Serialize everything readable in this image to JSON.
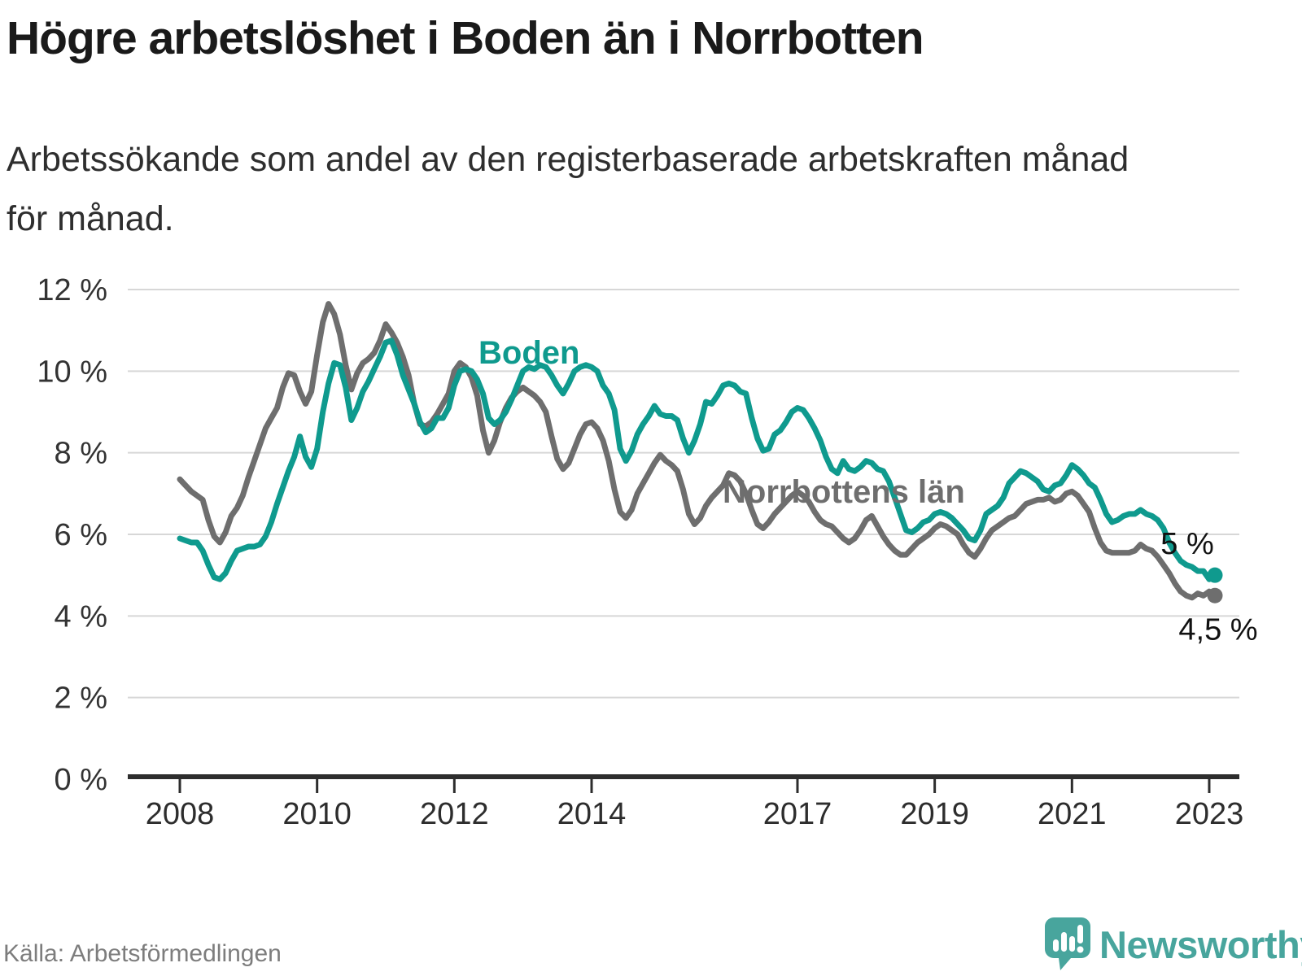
{
  "title": "Högre arbetslöshet i Boden än i Norrbotten",
  "subtitle": "Arbetssökande som andel av den registerbaserade arbetskraften månad\nför månad.",
  "source": "Källa: Arbetsförmedlingen",
  "brand": {
    "name": "Newsworthy"
  },
  "colors": {
    "boden_teal": "#0f9a8e",
    "norrbotten_gray": "#6e6e6e",
    "brand_teal": "#48a59d",
    "gridline": "#d7d7d7",
    "axis": "#2d2d2d",
    "axis_text": "#333333",
    "end_label_text": "#111111",
    "title_text": "#1a1a1a",
    "source_text": "#7d7d7d"
  },
  "chart_data": {
    "type": "line",
    "unit": "%",
    "x_start": "2008-01",
    "x_end": "2023-02",
    "frequency": "monthly",
    "ylim": [
      0,
      12
    ],
    "grid": true,
    "y_ticks": [
      0,
      2,
      4,
      6,
      8,
      10,
      12
    ],
    "y_tick_suffix": " %",
    "x_tick_years": [
      2008,
      2010,
      2012,
      2014,
      2017,
      2019,
      2021,
      2023
    ],
    "x_tick_labels": [
      "2008",
      "2010",
      "2012",
      "2014",
      "2017",
      "2019",
      "2021",
      "2023"
    ],
    "legend_position": "inline-labels",
    "series": [
      {
        "name": "Boden",
        "color": "#0f9a8e",
        "end_label": "5 %",
        "last_value": 5.0,
        "values": [
          5.9,
          5.85,
          5.8,
          5.8,
          5.6,
          5.25,
          4.95,
          4.9,
          5.05,
          5.35,
          5.6,
          5.65,
          5.7,
          5.7,
          5.75,
          5.95,
          6.3,
          6.75,
          7.15,
          7.55,
          7.9,
          8.4,
          7.9,
          7.65,
          8.1,
          9.0,
          9.7,
          10.2,
          10.15,
          9.6,
          8.8,
          9.1,
          9.5,
          9.75,
          10.05,
          10.35,
          10.7,
          10.75,
          10.4,
          9.9,
          9.55,
          9.2,
          8.75,
          8.5,
          8.6,
          8.85,
          8.85,
          9.1,
          9.65,
          10.0,
          10.05,
          10.0,
          9.8,
          9.45,
          8.85,
          8.7,
          8.8,
          9.0,
          9.3,
          9.65,
          10.0,
          10.1,
          10.05,
          10.15,
          10.1,
          9.9,
          9.65,
          9.45,
          9.7,
          10.0,
          10.1,
          10.15,
          10.1,
          10.0,
          9.65,
          9.45,
          9.05,
          8.1,
          7.8,
          8.05,
          8.45,
          8.7,
          8.9,
          9.15,
          8.95,
          8.9,
          8.9,
          8.8,
          8.35,
          8.0,
          8.3,
          8.7,
          9.25,
          9.2,
          9.4,
          9.65,
          9.7,
          9.65,
          9.5,
          9.45,
          8.85,
          8.35,
          8.05,
          8.1,
          8.45,
          8.55,
          8.75,
          9.0,
          9.1,
          9.05,
          8.85,
          8.6,
          8.3,
          7.9,
          7.6,
          7.5,
          7.8,
          7.6,
          7.55,
          7.65,
          7.8,
          7.75,
          7.6,
          7.55,
          7.3,
          6.9,
          6.5,
          6.1,
          6.05,
          6.15,
          6.3,
          6.35,
          6.5,
          6.55,
          6.5,
          6.4,
          6.25,
          6.1,
          5.9,
          5.85,
          6.1,
          6.5,
          6.6,
          6.7,
          6.9,
          7.25,
          7.4,
          7.55,
          7.5,
          7.4,
          7.3,
          7.1,
          7.05,
          7.2,
          7.25,
          7.45,
          7.7,
          7.6,
          7.45,
          7.25,
          7.15,
          6.85,
          6.5,
          6.3,
          6.35,
          6.45,
          6.5,
          6.5,
          6.6,
          6.5,
          6.45,
          6.35,
          6.15,
          5.8,
          5.55,
          5.35,
          5.25,
          5.2,
          5.1,
          5.1,
          4.9,
          5.0
        ]
      },
      {
        "name": "Norrbottens län",
        "color": "#6e6e6e",
        "end_label": "4,5 %",
        "last_value": 4.5,
        "values": [
          7.35,
          7.2,
          7.05,
          6.95,
          6.85,
          6.35,
          5.95,
          5.8,
          6.05,
          6.45,
          6.65,
          6.95,
          7.4,
          7.8,
          8.2,
          8.6,
          8.85,
          9.1,
          9.6,
          9.95,
          9.9,
          9.5,
          9.2,
          9.5,
          10.4,
          11.2,
          11.65,
          11.4,
          10.9,
          10.15,
          9.55,
          9.95,
          10.2,
          10.3,
          10.45,
          10.75,
          11.15,
          10.95,
          10.7,
          10.35,
          9.9,
          9.2,
          8.7,
          8.65,
          8.75,
          8.95,
          9.2,
          9.45,
          10.0,
          10.2,
          10.1,
          9.85,
          9.4,
          8.55,
          8.0,
          8.3,
          8.75,
          9.1,
          9.35,
          9.5,
          9.6,
          9.5,
          9.4,
          9.25,
          9.0,
          8.4,
          7.85,
          7.6,
          7.75,
          8.1,
          8.45,
          8.7,
          8.75,
          8.6,
          8.3,
          7.8,
          7.1,
          6.55,
          6.4,
          6.6,
          7.0,
          7.25,
          7.5,
          7.75,
          7.95,
          7.8,
          7.7,
          7.55,
          7.1,
          6.5,
          6.25,
          6.4,
          6.7,
          6.9,
          7.05,
          7.2,
          7.5,
          7.45,
          7.3,
          7.0,
          6.6,
          6.25,
          6.15,
          6.3,
          6.5,
          6.65,
          6.8,
          6.95,
          7.05,
          6.95,
          6.8,
          6.55,
          6.35,
          6.25,
          6.2,
          6.05,
          5.9,
          5.8,
          5.9,
          6.1,
          6.35,
          6.45,
          6.2,
          5.95,
          5.75,
          5.6,
          5.5,
          5.5,
          5.65,
          5.8,
          5.9,
          6.0,
          6.15,
          6.25,
          6.2,
          6.1,
          6.0,
          5.75,
          5.55,
          5.45,
          5.65,
          5.9,
          6.1,
          6.2,
          6.3,
          6.4,
          6.45,
          6.6,
          6.75,
          6.8,
          6.85,
          6.85,
          6.9,
          6.8,
          6.85,
          7.0,
          7.05,
          6.95,
          6.75,
          6.55,
          6.15,
          5.8,
          5.6,
          5.55,
          5.55,
          5.55,
          5.55,
          5.6,
          5.75,
          5.65,
          5.6,
          5.45,
          5.25,
          5.05,
          4.8,
          4.6,
          4.5,
          4.45,
          4.55,
          4.5,
          4.6,
          4.5
        ]
      }
    ]
  }
}
